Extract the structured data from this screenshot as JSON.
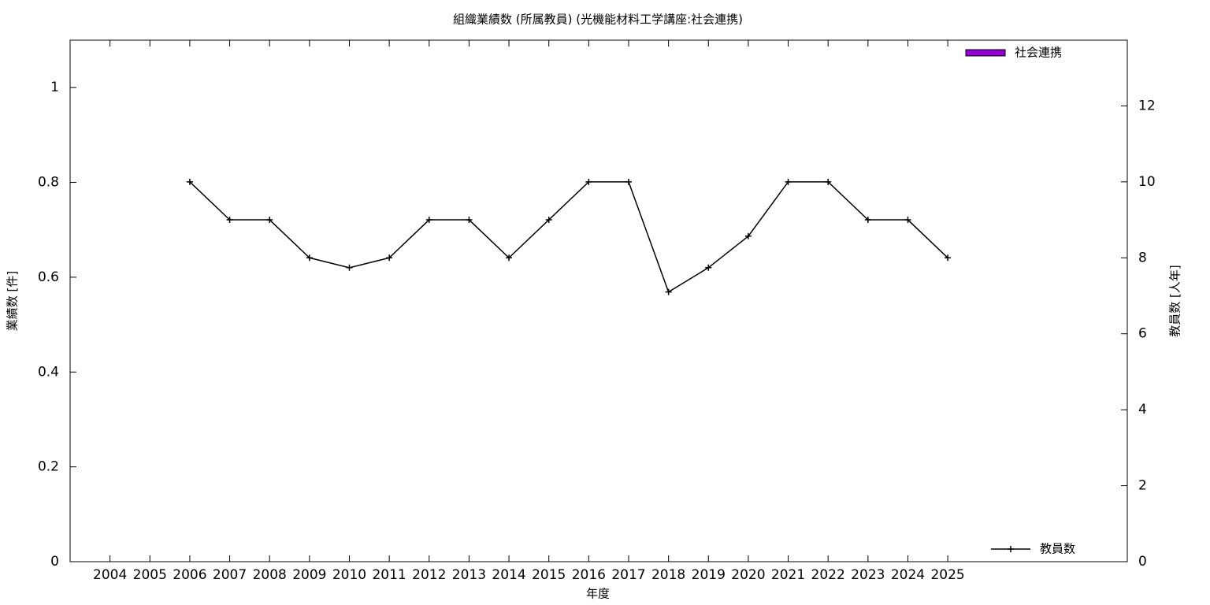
{
  "chart_data": {
    "type": "bar",
    "title": "組織業績数 (所属教員) (光機能材料工学講座:社会連携)",
    "xlabel": "年度",
    "ylabel": "業績数 [件]",
    "y2label": "教員数 [人年]",
    "x": [
      2004,
      2005,
      2006,
      2007,
      2008,
      2009,
      2010,
      2011,
      2012,
      2013,
      2014,
      2015,
      2016,
      2017,
      2018,
      2019,
      2020,
      2021,
      2022,
      2023,
      2024,
      2025
    ],
    "xlim": [
      2003,
      2029.5
    ],
    "xticks": [
      2004,
      2005,
      2006,
      2007,
      2008,
      2009,
      2010,
      2011,
      2012,
      2013,
      2014,
      2015,
      2016,
      2017,
      2018,
      2019,
      2020,
      2021,
      2022,
      2023,
      2024,
      2025
    ],
    "ylim": [
      0,
      1.1
    ],
    "yticks": [
      0,
      0.2,
      0.4,
      0.6,
      0.8,
      1
    ],
    "y2lim": [
      0,
      13.73
    ],
    "y2ticks": [
      0,
      2,
      4,
      6,
      8,
      10,
      12
    ],
    "series": [
      {
        "name": "社会連携",
        "type": "bar",
        "color": "#9400d3",
        "values": [
          0,
          0,
          0,
          0,
          0,
          0,
          0,
          0,
          0,
          0,
          0,
          0,
          0,
          0,
          0,
          0,
          0,
          0,
          0,
          0,
          0,
          0
        ]
      },
      {
        "name": "教員数",
        "type": "line",
        "axis": "y2",
        "color": "#000000",
        "values": [
          null,
          null,
          10,
          9,
          9,
          8,
          7.74,
          8,
          9,
          9,
          8,
          9,
          10,
          10,
          7.1,
          7.74,
          8.57,
          10,
          10,
          9,
          9,
          8
        ]
      }
    ]
  }
}
